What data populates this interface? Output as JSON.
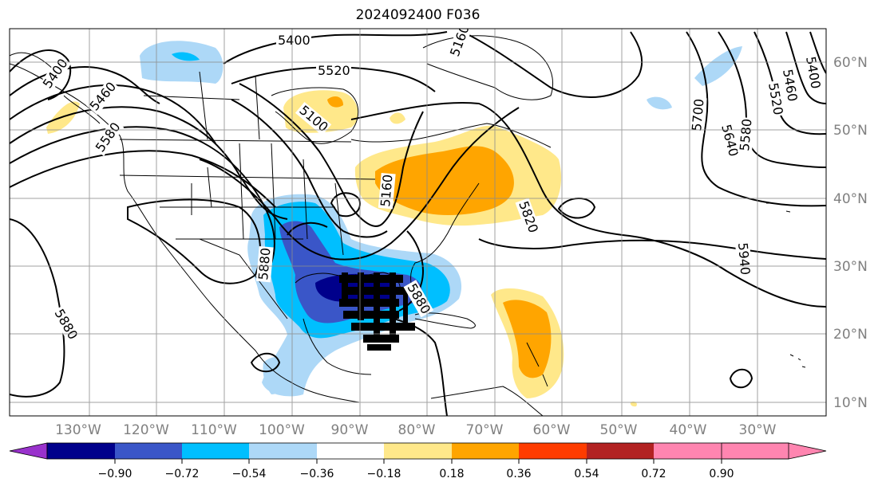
{
  "title": "2024092400 F036",
  "longitude_labels": [
    "130°W",
    "120°W",
    "110°W",
    "100°W",
    "90°W",
    "80°W",
    "70°W",
    "60°W",
    "50°W",
    "40°W",
    "30°W"
  ],
  "latitude_labels": [
    "60°N",
    "50°N",
    "40°N",
    "30°N",
    "20°N",
    "10°N"
  ],
  "colorbar": {
    "ticks": [
      "−0.90",
      "−0.72",
      "−0.54",
      "−0.36",
      "−0.18",
      "0.18",
      "0.36",
      "0.54",
      "0.72",
      "0.90"
    ],
    "colors": [
      "#9932cc",
      "#00008b",
      "#3a56c8",
      "#00bfff",
      "#add8f7",
      "#ffffff",
      "#ffe88a",
      "#ffa500",
      "#ff3c00",
      "#b22222",
      "#ff85b0"
    ]
  },
  "contour_labels": [
    "5400",
    "5520",
    "5400",
    "5460",
    "5580",
    "5100",
    "5160",
    "5700",
    "5640",
    "5580",
    "5520",
    "5460",
    "5400",
    "5820",
    "5880",
    "5880",
    "5940",
    "5880",
    "5160"
  ],
  "fill_colors": {
    "light_blue": "#add8f7",
    "blue": "#00bfff",
    "mid_blue": "#3a56c8",
    "navy": "#00008b",
    "yellow": "#ffe88a",
    "orange": "#ffa500"
  }
}
